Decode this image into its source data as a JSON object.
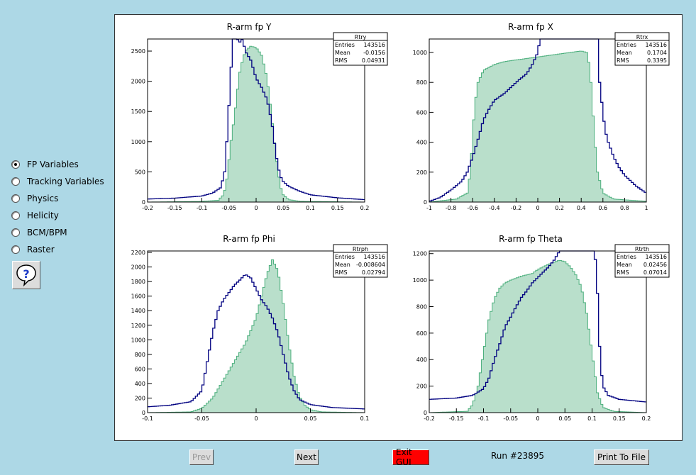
{
  "sidebar": {
    "options": [
      {
        "label": "FP Variables",
        "selected": true
      },
      {
        "label": "Tracking Variables",
        "selected": false
      },
      {
        "label": "Physics",
        "selected": false
      },
      {
        "label": "Helicity",
        "selected": false
      },
      {
        "label": "BCM/BPM",
        "selected": false
      },
      {
        "label": "Raster",
        "selected": false
      }
    ],
    "help_icon": "question-bubble-icon"
  },
  "bottom_bar": {
    "prev_label": "Prev",
    "next_label": "Next",
    "exit_label": "Exit GUI",
    "run_label": "Run #23895",
    "print_label": "Print To File"
  },
  "colors": {
    "line": "#000080",
    "fill": "#80c4a0",
    "exit": "#ff0000"
  },
  "chart_data": [
    {
      "type": "histogram",
      "title": "R-arm fp Y",
      "xlim": [
        -0.2,
        0.2
      ],
      "ylim": [
        0,
        2700
      ],
      "xticks": [
        -0.2,
        -0.15,
        -0.1,
        -0.05,
        0,
        0.05,
        0.1,
        0.15,
        0.2
      ],
      "xtick_labels": [
        "-0.2",
        "-0.15",
        "-0.1",
        "-0.05",
        "0",
        "0.05",
        "0.1",
        "0.15",
        "0.2"
      ],
      "yticks": [
        0,
        500,
        1000,
        1500,
        2000,
        2500
      ],
      "ytick_labels": [
        "0",
        "500",
        "1000",
        "1500",
        "2000",
        "2500"
      ],
      "stats": {
        "name": "Rtry",
        "rows": [
          [
            "Entries",
            "143516"
          ],
          [
            "Mean",
            "-0.0156"
          ],
          [
            "RMS",
            "0.04931"
          ]
        ]
      },
      "series": [
        {
          "style": "line",
          "points": [
            [
              -0.2,
              50
            ],
            [
              -0.15,
              65
            ],
            [
              -0.1,
              100
            ],
            [
              -0.08,
              150
            ],
            [
              -0.065,
              240
            ],
            [
              -0.058,
              500
            ],
            [
              -0.054,
              1000
            ],
            [
              -0.05,
              1600
            ],
            [
              -0.047,
              2100
            ],
            [
              -0.044,
              2500
            ],
            [
              -0.042,
              2700
            ],
            [
              -0.035,
              2700
            ],
            [
              -0.03,
              2650
            ],
            [
              -0.025,
              2700
            ],
            [
              -0.02,
              2500
            ],
            [
              -0.01,
              2350
            ],
            [
              0,
              2050
            ],
            [
              0.01,
              1900
            ],
            [
              0.02,
              1700
            ],
            [
              0.025,
              1500
            ],
            [
              0.03,
              1250
            ],
            [
              0.035,
              900
            ],
            [
              0.04,
              600
            ],
            [
              0.045,
              420
            ],
            [
              0.05,
              340
            ],
            [
              0.06,
              260
            ],
            [
              0.08,
              180
            ],
            [
              0.1,
              120
            ],
            [
              0.15,
              70
            ],
            [
              0.2,
              40
            ]
          ]
        },
        {
          "style": "fill",
          "points": [
            [
              -0.2,
              0
            ],
            [
              -0.1,
              10
            ],
            [
              -0.07,
              30
            ],
            [
              -0.06,
              120
            ],
            [
              -0.055,
              300
            ],
            [
              -0.05,
              700
            ],
            [
              -0.045,
              1100
            ],
            [
              -0.04,
              1400
            ],
            [
              -0.035,
              1800
            ],
            [
              -0.03,
              2150
            ],
            [
              -0.025,
              2350
            ],
            [
              -0.02,
              2500
            ],
            [
              -0.01,
              2580
            ],
            [
              0,
              2560
            ],
            [
              0.005,
              2500
            ],
            [
              0.01,
              2430
            ],
            [
              0.015,
              2250
            ],
            [
              0.02,
              2050
            ],
            [
              0.025,
              1700
            ],
            [
              0.03,
              1300
            ],
            [
              0.035,
              900
            ],
            [
              0.04,
              520
            ],
            [
              0.045,
              250
            ],
            [
              0.05,
              120
            ],
            [
              0.06,
              40
            ],
            [
              0.08,
              12
            ],
            [
              0.2,
              0
            ]
          ]
        }
      ]
    },
    {
      "type": "histogram",
      "title": "R-arm fp X",
      "xlim": [
        -1,
        1
      ],
      "ylim": [
        0,
        1090
      ],
      "xticks": [
        -1,
        -0.8,
        -0.6,
        -0.4,
        -0.2,
        0,
        0.2,
        0.4,
        0.6,
        0.8,
        1
      ],
      "xtick_labels": [
        "-1",
        "-0.8",
        "-0.6",
        "-0.4",
        "-0.2",
        "0",
        "0.2",
        "0.4",
        "0.6",
        "0.8",
        "1"
      ],
      "yticks": [
        0,
        200,
        400,
        600,
        800,
        1000
      ],
      "ytick_labels": [
        "0",
        "200",
        "400",
        "600",
        "800",
        "1000"
      ],
      "stats": {
        "name": "Rtrx",
        "rows": [
          [
            "Entries",
            "143516"
          ],
          [
            "Mean",
            "0.1704"
          ],
          [
            "RMS",
            "0.3395"
          ]
        ]
      },
      "series": [
        {
          "style": "line",
          "points": [
            [
              -1,
              5
            ],
            [
              -0.9,
              30
            ],
            [
              -0.8,
              80
            ],
            [
              -0.7,
              140
            ],
            [
              -0.65,
              200
            ],
            [
              -0.6,
              300
            ],
            [
              -0.55,
              420
            ],
            [
              -0.5,
              550
            ],
            [
              -0.45,
              620
            ],
            [
              -0.4,
              680
            ],
            [
              -0.3,
              730
            ],
            [
              -0.2,
              800
            ],
            [
              -0.1,
              860
            ],
            [
              -0.05,
              920
            ],
            [
              0,
              1000
            ],
            [
              0.02,
              1090
            ],
            [
              0.1,
              1090
            ],
            [
              0.2,
              1090
            ],
            [
              0.5,
              1090
            ],
            [
              0.55,
              1090
            ],
            [
              0.57,
              800
            ],
            [
              0.6,
              600
            ],
            [
              0.62,
              480
            ],
            [
              0.65,
              400
            ],
            [
              0.7,
              300
            ],
            [
              0.75,
              230
            ],
            [
              0.8,
              180
            ],
            [
              0.9,
              110
            ],
            [
              1,
              60
            ]
          ]
        },
        {
          "style": "fill",
          "points": [
            [
              -1,
              0
            ],
            [
              -0.75,
              20
            ],
            [
              -0.65,
              60
            ],
            [
              -0.62,
              200
            ],
            [
              -0.6,
              450
            ],
            [
              -0.58,
              650
            ],
            [
              -0.55,
              800
            ],
            [
              -0.5,
              880
            ],
            [
              -0.4,
              920
            ],
            [
              -0.3,
              940
            ],
            [
              -0.2,
              950
            ],
            [
              -0.1,
              960
            ],
            [
              0,
              970
            ],
            [
              0.1,
              980
            ],
            [
              0.2,
              990
            ],
            [
              0.3,
              1000
            ],
            [
              0.4,
              1010
            ],
            [
              0.45,
              1000
            ],
            [
              0.48,
              900
            ],
            [
              0.5,
              700
            ],
            [
              0.52,
              450
            ],
            [
              0.55,
              200
            ],
            [
              0.6,
              60
            ],
            [
              0.7,
              20
            ],
            [
              1,
              5
            ]
          ]
        }
      ]
    },
    {
      "type": "histogram",
      "title": "R-arm fp Phi",
      "xlim": [
        -0.1,
        0.1
      ],
      "ylim": [
        0,
        2220
      ],
      "xticks": [
        -0.1,
        -0.05,
        0,
        0.05,
        0.1
      ],
      "xtick_labels": [
        "-0.1",
        "-0.05",
        "0",
        "0.05",
        "0.1"
      ],
      "yticks": [
        0,
        200,
        400,
        600,
        800,
        1000,
        1200,
        1400,
        1600,
        1800,
        2000,
        2200
      ],
      "ytick_labels": [
        "0",
        "200",
        "400",
        "600",
        "800",
        "1000",
        "1200",
        "1400",
        "1600",
        "1800",
        "2000",
        "2200"
      ],
      "stats": {
        "name": "Rtrph",
        "rows": [
          [
            "Entries",
            "143516"
          ],
          [
            "Mean",
            "-0.008604"
          ],
          [
            "RMS",
            "0.02794"
          ]
        ]
      },
      "series": [
        {
          "style": "line",
          "points": [
            [
              -0.1,
              80
            ],
            [
              -0.08,
              100
            ],
            [
              -0.06,
              150
            ],
            [
              -0.05,
              300
            ],
            [
              -0.045,
              700
            ],
            [
              -0.04,
              1100
            ],
            [
              -0.035,
              1400
            ],
            [
              -0.03,
              1550
            ],
            [
              -0.025,
              1650
            ],
            [
              -0.02,
              1750
            ],
            [
              -0.015,
              1820
            ],
            [
              -0.01,
              1900
            ],
            [
              -0.005,
              1850
            ],
            [
              0,
              1700
            ],
            [
              0.005,
              1550
            ],
            [
              0.01,
              1450
            ],
            [
              0.015,
              1300
            ],
            [
              0.02,
              1100
            ],
            [
              0.025,
              800
            ],
            [
              0.03,
              500
            ],
            [
              0.035,
              300
            ],
            [
              0.04,
              180
            ],
            [
              0.05,
              110
            ],
            [
              0.07,
              70
            ],
            [
              0.1,
              50
            ]
          ]
        },
        {
          "style": "fill",
          "points": [
            [
              -0.1,
              0
            ],
            [
              -0.06,
              10
            ],
            [
              -0.05,
              60
            ],
            [
              -0.04,
              200
            ],
            [
              -0.03,
              450
            ],
            [
              -0.02,
              700
            ],
            [
              -0.01,
              950
            ],
            [
              0,
              1300
            ],
            [
              0.005,
              1600
            ],
            [
              0.01,
              1900
            ],
            [
              0.015,
              2100
            ],
            [
              0.02,
              1950
            ],
            [
              0.025,
              1500
            ],
            [
              0.03,
              950
            ],
            [
              0.035,
              500
            ],
            [
              0.04,
              220
            ],
            [
              0.045,
              100
            ],
            [
              0.05,
              40
            ],
            [
              0.06,
              10
            ],
            [
              0.1,
              0
            ]
          ]
        }
      ]
    },
    {
      "type": "histogram",
      "title": "R-arm fp Theta",
      "xlim": [
        -0.2,
        0.2
      ],
      "ylim": [
        0,
        1220
      ],
      "xticks": [
        -0.2,
        -0.15,
        -0.1,
        -0.05,
        0,
        0.05,
        0.1,
        0.15,
        0.2
      ],
      "xtick_labels": [
        "-0.2",
        "-0.15",
        "-0.1",
        "-0.05",
        "0",
        "0.05",
        "0.1",
        "0.15",
        "0.2"
      ],
      "yticks": [
        0,
        200,
        400,
        600,
        800,
        1000,
        1200
      ],
      "ytick_labels": [
        "0",
        "200",
        "400",
        "600",
        "800",
        "1000",
        "1200"
      ],
      "stats": {
        "name": "Rtrth",
        "rows": [
          [
            "Entries",
            "143516"
          ],
          [
            "Mean",
            "0.02456"
          ],
          [
            "RMS",
            "0.07014"
          ]
        ]
      },
      "series": [
        {
          "style": "line",
          "points": [
            [
              -0.2,
              100
            ],
            [
              -0.15,
              110
            ],
            [
              -0.12,
              130
            ],
            [
              -0.1,
              180
            ],
            [
              -0.09,
              260
            ],
            [
              -0.08,
              400
            ],
            [
              -0.07,
              520
            ],
            [
              -0.06,
              650
            ],
            [
              -0.05,
              720
            ],
            [
              -0.04,
              800
            ],
            [
              -0.03,
              870
            ],
            [
              -0.02,
              920
            ],
            [
              -0.01,
              980
            ],
            [
              0,
              1020
            ],
            [
              0.01,
              1060
            ],
            [
              0.02,
              1100
            ],
            [
              0.03,
              1150
            ],
            [
              0.04,
              1220
            ],
            [
              0.1,
              1220
            ],
            [
              0.105,
              1220
            ],
            [
              0.11,
              900
            ],
            [
              0.115,
              400
            ],
            [
              0.12,
              200
            ],
            [
              0.13,
              130
            ],
            [
              0.15,
              100
            ],
            [
              0.2,
              80
            ]
          ]
        },
        {
          "style": "fill",
          "points": [
            [
              -0.2,
              0
            ],
            [
              -0.13,
              10
            ],
            [
              -0.12,
              60
            ],
            [
              -0.11,
              200
            ],
            [
              -0.1,
              450
            ],
            [
              -0.09,
              700
            ],
            [
              -0.08,
              860
            ],
            [
              -0.07,
              940
            ],
            [
              -0.06,
              980
            ],
            [
              -0.05,
              1000
            ],
            [
              -0.03,
              1030
            ],
            [
              -0.01,
              1050
            ],
            [
              0,
              1080
            ],
            [
              0.02,
              1120
            ],
            [
              0.04,
              1150
            ],
            [
              0.05,
              1140
            ],
            [
              0.06,
              1100
            ],
            [
              0.07,
              1040
            ],
            [
              0.08,
              950
            ],
            [
              0.09,
              750
            ],
            [
              0.1,
              450
            ],
            [
              0.11,
              150
            ],
            [
              0.12,
              40
            ],
            [
              0.14,
              10
            ],
            [
              0.2,
              0
            ]
          ]
        }
      ]
    }
  ]
}
